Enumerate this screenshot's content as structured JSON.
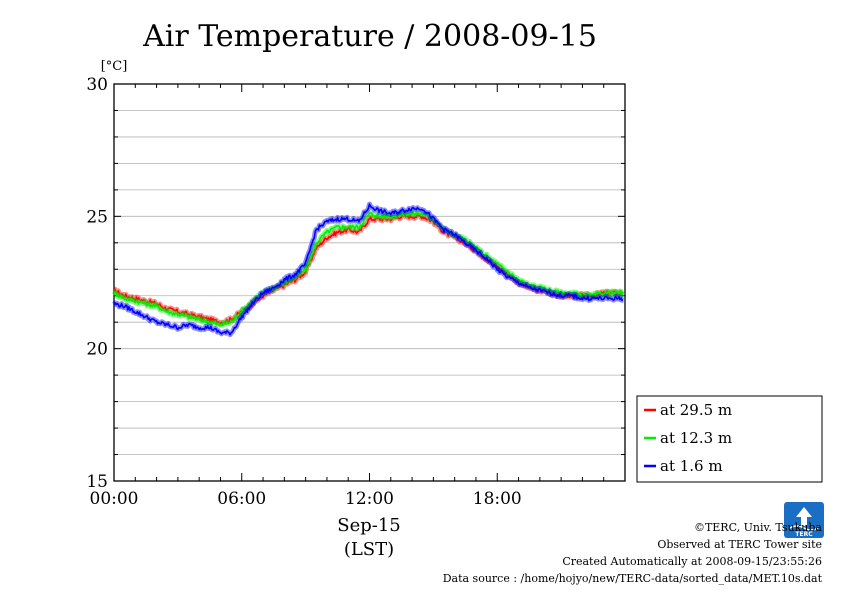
{
  "chart_data": {
    "type": "line",
    "title": "Air Temperature / 2008-09-15",
    "ylabel": "[°C]",
    "xlabel": "Sep-15",
    "xlabel2": "(LST)",
    "ylim": [
      15,
      30
    ],
    "xlim": [
      0,
      24
    ],
    "yticks": [
      "15",
      "20",
      "25",
      "30"
    ],
    "xticks": [
      {
        "hour": 0,
        "label": "00:00"
      },
      {
        "hour": 6,
        "label": "06:00"
      },
      {
        "hour": 12,
        "label": "12:00"
      },
      {
        "hour": 18,
        "label": "18:00"
      }
    ],
    "grid": true,
    "legend_position": "right",
    "series": [
      {
        "name": "at 29.5 m",
        "color": "#ff0000",
        "x": [
          0,
          0.5,
          1,
          1.5,
          2,
          2.5,
          3,
          3.5,
          4,
          4.5,
          5,
          5.5,
          6,
          6.5,
          7,
          7.5,
          8,
          8.5,
          9,
          9.5,
          10,
          10.5,
          11,
          11.5,
          12,
          12.5,
          13,
          13.5,
          14,
          14.5,
          15,
          15.5,
          16,
          16.5,
          17,
          17.5,
          18,
          18.5,
          19,
          19.5,
          20,
          20.5,
          21,
          21.5,
          22,
          22.5,
          23,
          23.5
        ],
        "y": [
          22.2,
          22.0,
          21.9,
          21.8,
          21.7,
          21.5,
          21.4,
          21.3,
          21.2,
          21.1,
          21.0,
          21.1,
          21.4,
          21.7,
          22.0,
          22.2,
          22.4,
          22.6,
          22.9,
          23.8,
          24.2,
          24.4,
          24.5,
          24.4,
          24.9,
          24.9,
          24.9,
          25.0,
          25.0,
          25.0,
          24.8,
          24.4,
          24.2,
          24.0,
          23.7,
          23.4,
          23.1,
          22.8,
          22.5,
          22.3,
          22.2,
          22.1,
          22.0,
          22.0,
          22.0,
          22.0,
          22.1,
          22.1
        ]
      },
      {
        "name": "at 12.3 m",
        "color": "#00ee00",
        "x": [
          0,
          0.5,
          1,
          1.5,
          2,
          2.5,
          3,
          3.5,
          4,
          4.5,
          5,
          5.5,
          6,
          6.5,
          7,
          7.5,
          8,
          8.5,
          9,
          9.5,
          10,
          10.5,
          11,
          11.5,
          12,
          12.5,
          13,
          13.5,
          14,
          14.5,
          15,
          15.5,
          16,
          16.5,
          17,
          17.5,
          18,
          18.5,
          19,
          19.5,
          20,
          20.5,
          21,
          21.5,
          22,
          22.5,
          23,
          23.5
        ],
        "y": [
          22.1,
          21.9,
          21.8,
          21.7,
          21.6,
          21.4,
          21.3,
          21.2,
          21.1,
          21.0,
          20.9,
          21.0,
          21.4,
          21.8,
          22.1,
          22.3,
          22.5,
          22.7,
          23.0,
          24.0,
          24.4,
          24.6,
          24.6,
          24.6,
          25.1,
          25.0,
          25.0,
          25.1,
          25.1,
          25.1,
          24.9,
          24.5,
          24.3,
          24.1,
          23.8,
          23.5,
          23.2,
          22.9,
          22.6,
          22.4,
          22.3,
          22.2,
          22.1,
          22.1,
          22.0,
          22.0,
          22.1,
          22.1
        ]
      },
      {
        "name": "at 1.6 m",
        "color": "#0000ff",
        "x": [
          0,
          0.5,
          1,
          1.5,
          2,
          2.5,
          3,
          3.5,
          4,
          4.5,
          5,
          5.5,
          6,
          6.5,
          7,
          7.5,
          8,
          8.5,
          9,
          9.5,
          10,
          10.5,
          11,
          11.5,
          12,
          12.5,
          13,
          13.5,
          14,
          14.5,
          15,
          15.5,
          16,
          16.5,
          17,
          17.5,
          18,
          18.5,
          19,
          19.5,
          20,
          20.5,
          21,
          21.5,
          22,
          22.5,
          23,
          23.5
        ],
        "y": [
          21.7,
          21.6,
          21.4,
          21.2,
          21.0,
          20.9,
          20.8,
          20.9,
          20.8,
          20.8,
          20.6,
          20.6,
          21.2,
          21.7,
          22.1,
          22.3,
          22.6,
          22.8,
          23.2,
          24.5,
          24.8,
          24.9,
          24.9,
          24.8,
          25.4,
          25.2,
          25.1,
          25.2,
          25.3,
          25.3,
          24.9,
          24.5,
          24.3,
          24.0,
          23.7,
          23.4,
          23.0,
          22.7,
          22.5,
          22.3,
          22.2,
          22.1,
          22.0,
          22.0,
          21.9,
          21.9,
          21.9,
          21.9
        ]
      }
    ]
  },
  "credits": {
    "line1": "©TERC, Univ. Tsukuba",
    "line2": "Observed at TERC Tower site",
    "line3": "Created Automatically at 2008-09-15/23:55:26",
    "line4": "Data source : /home/hojyo/new/TERC-data/sorted_data/MET.10s.dat"
  },
  "logo": {
    "text": "TERC",
    "color": "#1a6fc4"
  }
}
